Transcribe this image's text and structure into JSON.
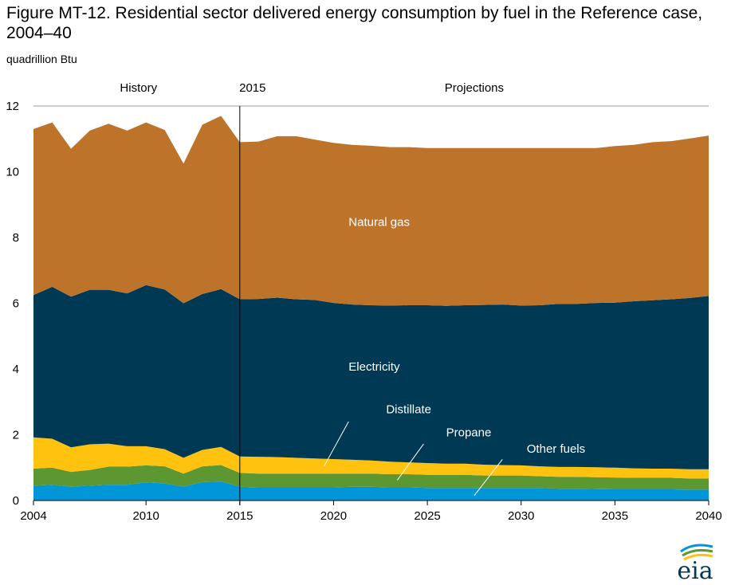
{
  "title": "Figure MT-12. Residential sector delivered energy consumption by fuel in the Reference case, 2004–40",
  "unit_label": "quadrillion Btu",
  "section_labels": {
    "history": "History",
    "divider": "2015",
    "projections": "Projections"
  },
  "logo_text": "eia",
  "colors": {
    "other_fuels": "#0096d7",
    "propane": "#5d9732",
    "distillate": "#ffc20e",
    "electricity": "#003953",
    "natural_gas": "#bd732a",
    "callout": "#ffffff",
    "divider": "#000000",
    "gridline": "#999999"
  },
  "chart_data": {
    "type": "area",
    "stacked": true,
    "xlim": [
      2004,
      2040
    ],
    "ylim": [
      0,
      12
    ],
    "x_ticks": [
      "2004",
      "2010",
      "2015",
      "2020",
      "2025",
      "2030",
      "2035",
      "2040"
    ],
    "y_ticks": [
      "0",
      "2",
      "4",
      "6",
      "8",
      "10",
      "12"
    ],
    "history_end": 2015,
    "x": [
      2004,
      2005,
      2006,
      2007,
      2008,
      2009,
      2010,
      2011,
      2012,
      2013,
      2014,
      2015,
      2016,
      2017,
      2018,
      2019,
      2020,
      2021,
      2022,
      2023,
      2024,
      2025,
      2026,
      2027,
      2028,
      2029,
      2030,
      2031,
      2032,
      2033,
      2034,
      2035,
      2036,
      2037,
      2038,
      2039,
      2040
    ],
    "series": [
      {
        "name": "Other fuels",
        "key": "other_fuels",
        "values": [
          0.45,
          0.48,
          0.42,
          0.45,
          0.48,
          0.48,
          0.55,
          0.52,
          0.42,
          0.56,
          0.58,
          0.42,
          0.4,
          0.4,
          0.4,
          0.4,
          0.4,
          0.42,
          0.42,
          0.4,
          0.4,
          0.38,
          0.38,
          0.38,
          0.38,
          0.38,
          0.38,
          0.38,
          0.36,
          0.36,
          0.35,
          0.34,
          0.34,
          0.34,
          0.34,
          0.33,
          0.33
        ]
      },
      {
        "name": "Propane",
        "key": "propane",
        "values": [
          0.52,
          0.52,
          0.45,
          0.48,
          0.55,
          0.55,
          0.52,
          0.52,
          0.4,
          0.48,
          0.5,
          0.42,
          0.42,
          0.42,
          0.42,
          0.42,
          0.42,
          0.4,
          0.4,
          0.4,
          0.4,
          0.4,
          0.4,
          0.4,
          0.38,
          0.38,
          0.38,
          0.36,
          0.36,
          0.36,
          0.36,
          0.36,
          0.35,
          0.35,
          0.35,
          0.34,
          0.34
        ]
      },
      {
        "name": "Distillate",
        "key": "distillate",
        "values": [
          0.95,
          0.88,
          0.75,
          0.78,
          0.7,
          0.62,
          0.58,
          0.52,
          0.48,
          0.5,
          0.55,
          0.5,
          0.51,
          0.5,
          0.48,
          0.46,
          0.44,
          0.42,
          0.4,
          0.38,
          0.36,
          0.36,
          0.34,
          0.34,
          0.33,
          0.32,
          0.31,
          0.3,
          0.3,
          0.3,
          0.3,
          0.3,
          0.29,
          0.28,
          0.28,
          0.28,
          0.28
        ]
      },
      {
        "name": "Electricity",
        "key": "electricity",
        "values": [
          4.33,
          4.62,
          4.58,
          4.7,
          4.68,
          4.65,
          4.9,
          4.86,
          4.7,
          4.74,
          4.8,
          4.78,
          4.8,
          4.85,
          4.82,
          4.82,
          4.75,
          4.72,
          4.72,
          4.75,
          4.78,
          4.8,
          4.8,
          4.82,
          4.86,
          4.88,
          4.86,
          4.9,
          4.96,
          4.96,
          5.0,
          5.02,
          5.08,
          5.12,
          5.15,
          5.21,
          5.27
        ]
      },
      {
        "name": "Natural gas",
        "key": "natural_gas",
        "values": [
          5.05,
          5.0,
          4.5,
          4.84,
          5.05,
          4.95,
          4.95,
          4.85,
          4.25,
          5.15,
          5.27,
          4.78,
          4.79,
          4.91,
          4.96,
          4.88,
          4.87,
          4.86,
          4.85,
          4.82,
          4.81,
          4.78,
          4.8,
          4.78,
          4.77,
          4.76,
          4.79,
          4.78,
          4.74,
          4.74,
          4.71,
          4.76,
          4.76,
          4.81,
          4.81,
          4.85,
          4.88
        ]
      }
    ],
    "area_labels": [
      {
        "key": "natural_gas",
        "text": "Natural gas",
        "x": 2020.8,
        "y": 8.35
      },
      {
        "key": "electricity",
        "text": "Electricity",
        "x": 2020.8,
        "y": 3.95
      }
    ],
    "callouts": [
      {
        "key": "distillate",
        "text": "Distillate",
        "text_x": 2022.8,
        "text_y": 2.65,
        "line_from": [
          2020.8,
          2.4
        ],
        "line_to": [
          2019.5,
          1.05
        ]
      },
      {
        "key": "propane",
        "text": "Propane",
        "text_x": 2026.0,
        "text_y": 1.95,
        "line_from": [
          2024.8,
          1.72
        ],
        "line_to": [
          2023.4,
          0.62
        ]
      },
      {
        "key": "other_fuels",
        "text": "Other fuels",
        "text_x": 2030.3,
        "text_y": 1.45,
        "line_from": [
          2029.0,
          1.25
        ],
        "line_to": [
          2027.5,
          0.15
        ]
      }
    ]
  }
}
